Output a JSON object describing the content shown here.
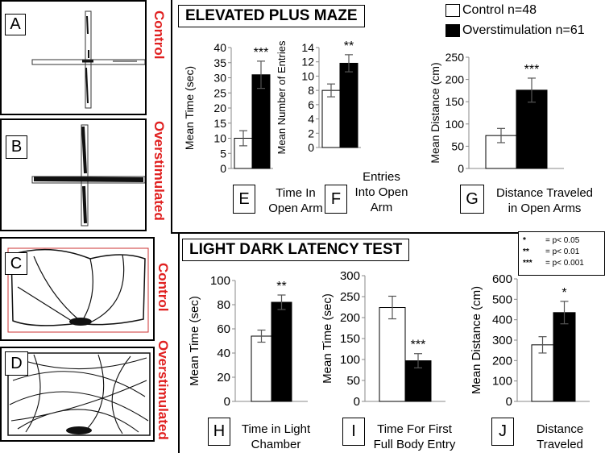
{
  "maps": {
    "a_label": "A",
    "b_label": "B",
    "c_label": "C",
    "d_label": "D",
    "top_control": "Control",
    "top_over": "Overstimulated",
    "bottom_control": "Control",
    "bottom_over": "Overstimulated"
  },
  "epm": {
    "title": "ELEVATED PLUS MAZE",
    "legend": {
      "control": "Control  n=48",
      "over": "Overstimulation n=61"
    }
  },
  "ldl": {
    "title": "LIGHT DARK LATENCY TEST",
    "sig": [
      {
        "sym": "*",
        "text": "= p< 0.05"
      },
      {
        "sym": "**",
        "text": "= p< 0.01"
      },
      {
        "sym": "***",
        "text": "= p< 0.001"
      }
    ]
  },
  "colors": {
    "control": "#ffffff",
    "overstimulation": "#000000",
    "label_red": "#e02020"
  },
  "chart_data": [
    {
      "id": "E",
      "type": "bar",
      "letter": "E",
      "caption": [
        "Time In",
        "Open Arm"
      ],
      "ylabel": "Mean Time (sec)",
      "ylim": [
        0,
        40
      ],
      "ticks": [
        0,
        5,
        10,
        15,
        20,
        25,
        30,
        35,
        40
      ],
      "categories": [
        "Control",
        "Overstimulation"
      ],
      "values": [
        10,
        31
      ],
      "errors": [
        2.5,
        4.5
      ],
      "sig": "***"
    },
    {
      "id": "F",
      "type": "bar",
      "letter": "F",
      "caption": [
        "Entries",
        "Into Open",
        "Arm"
      ],
      "ylabel": "Mean Number of Entries",
      "ylim": [
        0,
        14
      ],
      "ticks": [
        0,
        2,
        4,
        6,
        8,
        10,
        12,
        14
      ],
      "categories": [
        "Control",
        "Overstimulation"
      ],
      "values": [
        8,
        11.8
      ],
      "errors": [
        0.9,
        1.2
      ],
      "sig": "**"
    },
    {
      "id": "G",
      "type": "bar",
      "letter": "G",
      "caption": [
        "Distance Traveled",
        "in Open Arms"
      ],
      "ylabel": "Mean Distance (cm)",
      "ylim": [
        0,
        250
      ],
      "ticks": [
        0,
        50,
        100,
        150,
        200,
        250
      ],
      "categories": [
        "Control",
        "Overstimulation"
      ],
      "values": [
        74,
        176
      ],
      "errors": [
        16,
        27
      ],
      "sig": "***"
    },
    {
      "id": "H",
      "type": "bar",
      "letter": "H",
      "caption": [
        "Time in Light",
        "Chamber"
      ],
      "ylabel": "Mean Time (sec)",
      "ylim": [
        0,
        100
      ],
      "ticks": [
        0,
        20,
        40,
        60,
        80,
        100
      ],
      "categories": [
        "Control",
        "Overstimulation"
      ],
      "values": [
        54,
        82
      ],
      "errors": [
        5,
        6
      ],
      "sig": "**"
    },
    {
      "id": "I",
      "type": "bar",
      "letter": "I",
      "caption": [
        "Time For First",
        "Full Body Entry"
      ],
      "ylabel": "Mean Time (sec)",
      "ylim": [
        0,
        300
      ],
      "ticks": [
        0,
        50,
        100,
        150,
        200,
        250,
        300
      ],
      "categories": [
        "Control",
        "Overstimulation"
      ],
      "values": [
        224,
        97
      ],
      "errors": [
        27,
        17
      ],
      "sig": "***"
    },
    {
      "id": "J",
      "type": "bar",
      "letter": "J",
      "caption": [
        "Distance",
        "Traveled"
      ],
      "ylabel": "Mean Distance (cm)",
      "ylim": [
        0,
        600
      ],
      "ticks": [
        0,
        100,
        200,
        300,
        400,
        500,
        600
      ],
      "categories": [
        "Control",
        "Overstimulation"
      ],
      "values": [
        277,
        435
      ],
      "errors": [
        40,
        55
      ],
      "sig": "*"
    }
  ]
}
